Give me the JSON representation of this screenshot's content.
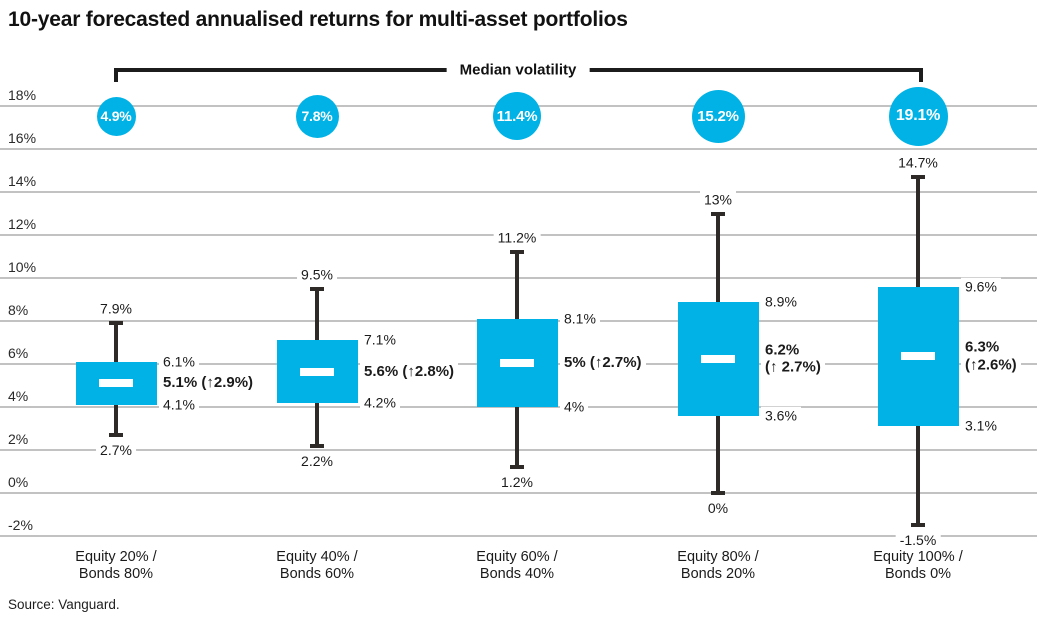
{
  "chart_data": {
    "type": "boxplot",
    "title": "10-year forecasted annualised returns for multi-asset portfolios",
    "source": "Source: Vanguard.",
    "bracket_label": "Median volatility",
    "y_unit": "%",
    "ylim": [
      -2,
      18
    ],
    "grid": true,
    "y_ticks": [
      18,
      16,
      14,
      12,
      10,
      8,
      6,
      4,
      2,
      0,
      -2
    ],
    "y_tick_labels": [
      "18%",
      "16%",
      "14%",
      "12%",
      "10%",
      "8%",
      "6%",
      "4%",
      "2%",
      "0%",
      "-2%"
    ],
    "colors": {
      "accent": "#00b2e5",
      "ink": "#1b1b1b",
      "whisker": "#2d2a27",
      "grid": "#c2c2c2"
    },
    "series": [
      {
        "category": "Equity 20% /\nBonds 80%",
        "median_volatility_pct": 4.9,
        "median_volatility_label": "4.9%",
        "whisker_high": 7.9,
        "box_high": 6.1,
        "median": 5.1,
        "box_low": 4.1,
        "whisker_low": 2.7,
        "median_change_pct": 2.9,
        "labels": {
          "whisker_high": "7.9%",
          "box_high": "6.1%",
          "median": "5.1% (↑2.9%)",
          "box_low": "4.1%",
          "whisker_low": "2.7%"
        }
      },
      {
        "category": "Equity 40% /\nBonds 60%",
        "median_volatility_pct": 7.8,
        "median_volatility_label": "7.8%",
        "whisker_high": 9.5,
        "box_high": 7.1,
        "median": 5.6,
        "box_low": 4.2,
        "whisker_low": 2.2,
        "median_change_pct": 2.8,
        "labels": {
          "whisker_high": "9.5%",
          "box_high": "7.1%",
          "median": "5.6% (↑2.8%)",
          "box_low": "4.2%",
          "whisker_low": "2.2%"
        }
      },
      {
        "category": "Equity 60% /\nBonds 40%",
        "median_volatility_pct": 11.4,
        "median_volatility_label": "11.4%",
        "whisker_high": 11.2,
        "box_high": 8.1,
        "median": 5.0,
        "box_low": 4.0,
        "whisker_low": 1.2,
        "median_change_pct": 2.7,
        "labels": {
          "whisker_high": "11.2%",
          "box_high": "8.1%",
          "median": "5% (↑2.7%)",
          "box_low": "4%",
          "whisker_low": "1.2%"
        }
      },
      {
        "category": "Equity 80% /\nBonds 20%",
        "median_volatility_pct": 15.2,
        "median_volatility_label": "15.2%",
        "whisker_high": 13.0,
        "box_high": 8.9,
        "median": 6.2,
        "box_low": 3.6,
        "whisker_low": 0.0,
        "median_change_pct": 2.7,
        "labels": {
          "whisker_high": "13%",
          "box_high": "8.9%",
          "median": "6.2%\n(↑ 2.7%)",
          "box_low": "3.6%",
          "whisker_low": "0%"
        }
      },
      {
        "category": "Equity 100% /\nBonds 0%",
        "median_volatility_pct": 19.1,
        "median_volatility_label": "19.1%",
        "whisker_high": 14.7,
        "box_high": 9.6,
        "median": 6.3,
        "box_low": 3.1,
        "whisker_low": -1.5,
        "median_change_pct": 2.6,
        "labels": {
          "whisker_high": "14.7%",
          "box_high": "9.6%",
          "median": "6.3%\n(↑2.6%)",
          "box_low": "3.1%",
          "whisker_low": "-1.5%"
        }
      }
    ]
  }
}
